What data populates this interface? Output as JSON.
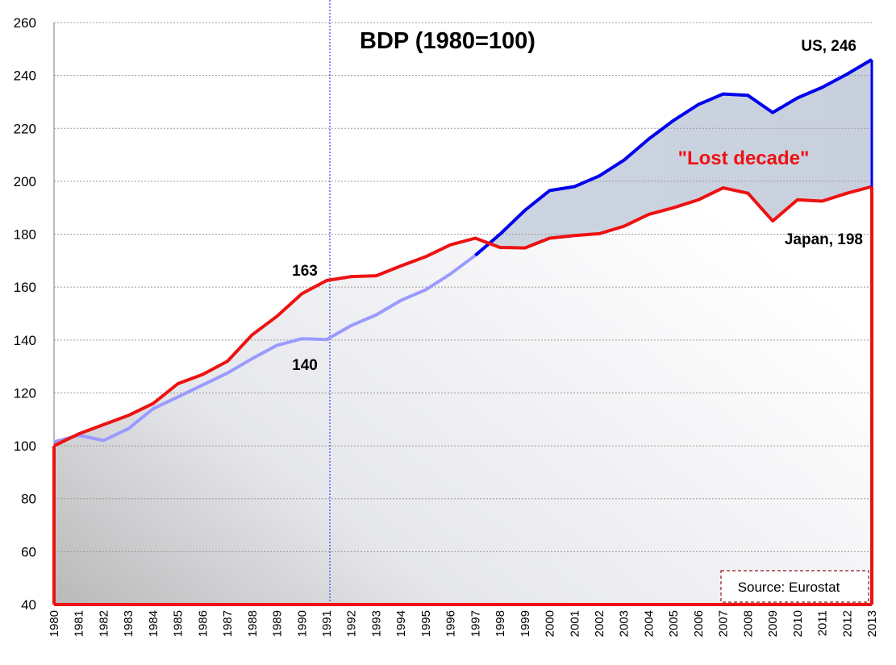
{
  "chart_data": {
    "type": "line",
    "title": "BDP (1980=100)",
    "categories": [
      "1980",
      "1981",
      "1982",
      "1983",
      "1984",
      "1985",
      "1986",
      "1987",
      "1988",
      "1989",
      "1990",
      "1991",
      "1992",
      "1993",
      "1994",
      "1995",
      "1996",
      "1997",
      "1998",
      "1999",
      "2000",
      "2001",
      "2002",
      "2003",
      "2004",
      "2005",
      "2006",
      "2007",
      "2008",
      "2009",
      "2010",
      "2011",
      "2012",
      "2013"
    ],
    "ylim": [
      40,
      260
    ],
    "yticks": [
      40,
      60,
      80,
      100,
      120,
      140,
      160,
      180,
      200,
      220,
      240,
      260
    ],
    "series": [
      {
        "name": "US",
        "color": "#0000ee",
        "early_color": "#9a9aff",
        "values": [
          101.5,
          104,
          102,
          106.5,
          114,
          118.5,
          123,
          127.5,
          133,
          138,
          140.5,
          140.2,
          145.5,
          149.5,
          155,
          159,
          165,
          172,
          180,
          189,
          196.5,
          198,
          202,
          208,
          216,
          223,
          229,
          233,
          232.5,
          226,
          231.5,
          235.5,
          240.5,
          246
        ]
      },
      {
        "name": "Japan",
        "color": "#ee1111",
        "values": [
          100,
          104.5,
          108,
          111.5,
          116,
          123.5,
          127,
          132,
          142,
          149,
          157.5,
          162.5,
          164,
          164.3,
          168,
          171.5,
          176,
          178.5,
          175,
          174.8,
          178.5,
          179.5,
          180.2,
          183,
          187.5,
          190,
          193,
          197.5,
          195.5,
          185,
          193,
          192.5,
          195.5,
          198
        ]
      }
    ],
    "annotations": {
      "us_end": "US, 246",
      "japan_end": "Japan, 198",
      "lost_decade": "\"Lost decade\"",
      "japan_1991": "163",
      "us_1991": "140"
    },
    "marker_year": "1991",
    "source": "Source: Eurostat"
  }
}
